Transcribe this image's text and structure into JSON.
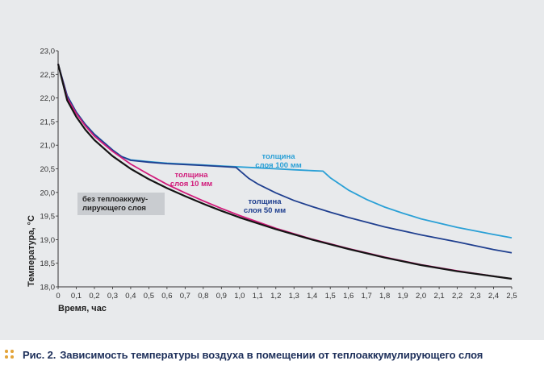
{
  "figure": {
    "caption_prefix": "Рис. 2.",
    "caption_text": "Зависимость температуры воздуха в помещении от теплоаккумулирующего слоя"
  },
  "colors": {
    "panel_background": "#e8eaec",
    "caption_text": "#1d2f5a",
    "caption_dots": "#e3a43a",
    "label_box": "#c9ccd0"
  },
  "chart_data": {
    "type": "line",
    "title": "",
    "xlabel": "Время, час",
    "ylabel": "Температура, °С",
    "xlim": [
      0,
      2.5
    ],
    "ylim": [
      18.0,
      23.0
    ],
    "grid": false,
    "legend": "inline labels",
    "x_ticks": [
      "0",
      "0,1",
      "0,2",
      "0,3",
      "0,4",
      "0,5",
      "0,6",
      "0,7",
      "0,8",
      "0,9",
      "1,0",
      "1,1",
      "1,2",
      "1,3",
      "1,4",
      "1,5",
      "1,6",
      "1,7",
      "1,8",
      "1,9",
      "2,0",
      "2,1",
      "2,2",
      "2,3",
      "2,4",
      "2,5"
    ],
    "y_ticks": [
      "18,0",
      "18,5",
      "19,0",
      "19,5",
      "20,0",
      "20,5",
      "21,0",
      "21,5",
      "22,0",
      "22,5",
      "23,0"
    ],
    "series": [
      {
        "name": "без теплоаккуму-лирующего слоя",
        "label_lines": [
          "без теплоаккуму-",
          "лирующего слоя"
        ],
        "color": "#141414",
        "x": [
          0,
          0.05,
          0.1,
          0.15,
          0.2,
          0.3,
          0.4,
          0.5,
          0.6,
          0.7,
          0.8,
          0.9,
          1.0,
          1.2,
          1.4,
          1.6,
          1.8,
          2.0,
          2.2,
          2.5
        ],
        "y": [
          22.72,
          21.95,
          21.6,
          21.33,
          21.11,
          20.77,
          20.5,
          20.28,
          20.09,
          19.92,
          19.76,
          19.61,
          19.47,
          19.22,
          19.0,
          18.8,
          18.62,
          18.46,
          18.33,
          18.17
        ]
      },
      {
        "name": "толщина слоя 10 мм",
        "label_lines": [
          "толщина",
          "слоя 10 мм"
        ],
        "color": "#d11a7a",
        "x": [
          0,
          0.05,
          0.1,
          0.15,
          0.2,
          0.3,
          0.4,
          0.5,
          0.6,
          0.7,
          0.8,
          0.9,
          1.0,
          1.2,
          1.4,
          1.6,
          1.8,
          2.0,
          2.2,
          2.5
        ],
        "y": [
          22.72,
          22.0,
          21.67,
          21.41,
          21.19,
          20.87,
          20.6,
          20.38,
          20.17,
          19.99,
          19.82,
          19.66,
          19.51,
          19.24,
          19.01,
          18.81,
          18.63,
          18.47,
          18.34,
          18.17
        ]
      },
      {
        "name": "толщина слоя 50 мм",
        "label_lines": [
          "толщина",
          "слоя 50 мм"
        ],
        "color": "#1f3f8f",
        "x": [
          0,
          0.05,
          0.1,
          0.15,
          0.2,
          0.3,
          0.35,
          0.4,
          0.5,
          0.6,
          0.7,
          0.8,
          0.9,
          0.98,
          1.05,
          1.1,
          1.2,
          1.3,
          1.4,
          1.5,
          1.6,
          1.8,
          2.0,
          2.2,
          2.4,
          2.5
        ],
        "y": [
          22.72,
          22.05,
          21.7,
          21.44,
          21.23,
          20.9,
          20.76,
          20.68,
          20.64,
          20.61,
          20.59,
          20.57,
          20.55,
          20.53,
          20.3,
          20.18,
          19.99,
          19.83,
          19.7,
          19.58,
          19.47,
          19.27,
          19.1,
          18.95,
          18.79,
          18.72
        ]
      },
      {
        "name": "толщина слоя 100 мм",
        "label_lines": [
          "толщина",
          "слоя 100 мм"
        ],
        "color": "#2aa0d6",
        "x": [
          0,
          0.05,
          0.1,
          0.15,
          0.2,
          0.3,
          0.35,
          0.4,
          0.5,
          0.6,
          0.7,
          0.8,
          0.9,
          1.0,
          1.1,
          1.2,
          1.3,
          1.4,
          1.46,
          1.5,
          1.6,
          1.7,
          1.8,
          1.9,
          2.0,
          2.2,
          2.4,
          2.5
        ],
        "y": [
          22.72,
          22.05,
          21.7,
          21.44,
          21.23,
          20.9,
          20.76,
          20.69,
          20.65,
          20.62,
          20.6,
          20.58,
          20.56,
          20.54,
          20.52,
          20.5,
          20.48,
          20.46,
          20.45,
          20.31,
          20.05,
          19.85,
          19.69,
          19.56,
          19.44,
          19.26,
          19.11,
          19.04
        ]
      }
    ]
  }
}
